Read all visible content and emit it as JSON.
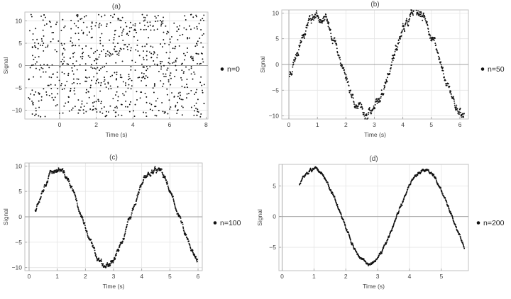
{
  "chart_data": [
    {
      "type": "scatter",
      "panel_label": "(a)",
      "xlabel": "Time (s)",
      "ylabel": "Signal",
      "legend": "n=0",
      "xlim": [
        -1.9,
        8.1
      ],
      "ylim": [
        -12,
        12
      ],
      "xticks": [
        0,
        2,
        4,
        6,
        8
      ],
      "yticks": [
        -10,
        -5,
        0,
        5,
        10
      ],
      "gen": {
        "mode": "noise",
        "tmin": -1.7,
        "tmax": 7.9,
        "count": 780,
        "seed": 11,
        "amp": 10,
        "omega": 1.81,
        "phase": -0.24,
        "noise": 0
      }
    },
    {
      "type": "scatter",
      "panel_label": "(b)",
      "xlabel": "Time (s)",
      "ylabel": "Signal",
      "legend": "n=50",
      "xlim": [
        -0.25,
        6.3
      ],
      "ylim": [
        -10.6,
        10.6
      ],
      "xticks": [
        0,
        1,
        2,
        3,
        4,
        5,
        6
      ],
      "yticks": [
        -10,
        -5,
        0,
        5,
        10
      ],
      "gen": {
        "mode": "wave",
        "tmin": 0.02,
        "tmax": 6.15,
        "count": 600,
        "seed": 23,
        "amp": 9.8,
        "omega": 1.81,
        "phase": -0.24,
        "noise": 0.55
      }
    },
    {
      "type": "scatter",
      "panel_label": "(c)",
      "xlabel": "Time (s)",
      "ylabel": "Signal",
      "legend": "n=100",
      "xlim": [
        -0.15,
        6.15
      ],
      "ylim": [
        -10.6,
        10.6
      ],
      "xticks": [
        0,
        1,
        2,
        3,
        4,
        5,
        6
      ],
      "yticks": [
        -10,
        -5,
        0,
        5,
        10
      ],
      "gen": {
        "mode": "wave",
        "tmin": 0.22,
        "tmax": 5.98,
        "count": 620,
        "seed": 37,
        "amp": 9.3,
        "omega": 1.81,
        "phase": -0.24,
        "noise": 0.32
      }
    },
    {
      "type": "scatter",
      "panel_label": "(d)",
      "xlabel": "Time (s)",
      "ylabel": "Signal",
      "legend": "n=200",
      "xlim": [
        -0.1,
        5.85
      ],
      "ylim": [
        -8.8,
        8.5
      ],
      "xticks": [
        0,
        1,
        2,
        3,
        4,
        5
      ],
      "yticks": [
        -5,
        0,
        5
      ],
      "gen": {
        "mode": "wave",
        "tmin": 0.55,
        "tmax": 5.72,
        "count": 650,
        "seed": 51,
        "amp": 7.65,
        "omega": 1.81,
        "phase": -0.24,
        "noise": 0.16
      }
    }
  ]
}
